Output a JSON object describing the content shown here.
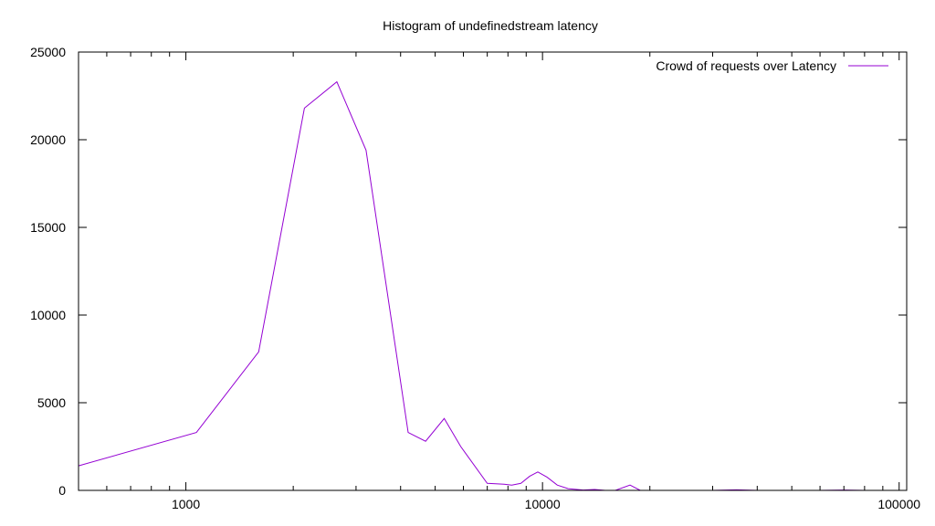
{
  "chart_data": {
    "type": "line",
    "title": "Histogram of undefinedstream latency",
    "xlabel": "",
    "ylabel": "",
    "x_scale": "log",
    "xlim": [
      500,
      105000
    ],
    "ylim": [
      0,
      25000
    ],
    "x_ticks": [
      {
        "value": 1000,
        "label": "1000"
      },
      {
        "value": 10000,
        "label": "10000"
      },
      {
        "value": 100000,
        "label": "100000"
      }
    ],
    "y_ticks": [
      {
        "value": 0,
        "label": "0"
      },
      {
        "value": 5000,
        "label": "5000"
      },
      {
        "value": 10000,
        "label": "10000"
      },
      {
        "value": 15000,
        "label": "15000"
      },
      {
        "value": 20000,
        "label": "20000"
      },
      {
        "value": 25000,
        "label": "25000"
      }
    ],
    "grid": false,
    "legend_position": "top-right",
    "series": [
      {
        "name": "Crowd of requests over Latency",
        "color": "#9400d3",
        "x": [
          500,
          1070,
          1600,
          2150,
          2650,
          3200,
          4200,
          4700,
          5300,
          5900,
          7000,
          7800,
          8200,
          8700,
          9200,
          9700,
          10300,
          11000,
          11800,
          13000,
          14000,
          15000,
          16000,
          17600,
          18800,
          20000,
          30000,
          35000,
          40000,
          60000,
          70000,
          80000,
          90000
        ],
        "y": [
          1400,
          3300,
          7900,
          21800,
          23300,
          19400,
          3300,
          2800,
          4100,
          2500,
          400,
          350,
          300,
          400,
          800,
          1050,
          750,
          300,
          100,
          20,
          50,
          0,
          0,
          300,
          0,
          0,
          0,
          30,
          0,
          0,
          20,
          0,
          0
        ]
      }
    ]
  }
}
